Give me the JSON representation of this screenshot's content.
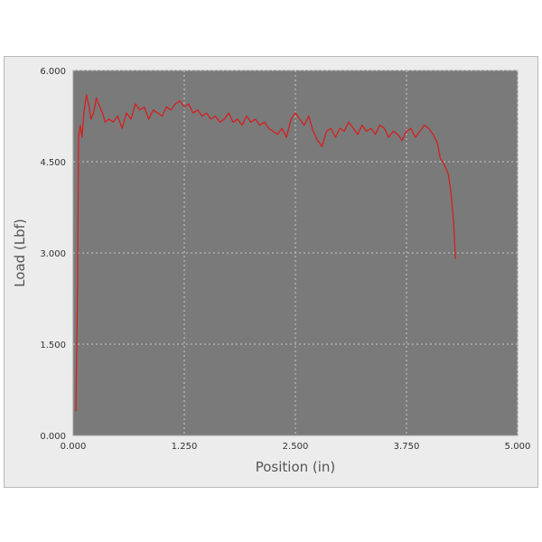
{
  "chart_data": {
    "type": "line",
    "title": "",
    "xlabel": "Position (in)",
    "ylabel": "Load (Lbf)",
    "xlim": [
      0,
      5
    ],
    "ylim": [
      0,
      6
    ],
    "x_ticks": [
      "0.000",
      "1.250",
      "2.500",
      "3.750",
      "5.000"
    ],
    "x_tick_values": [
      0,
      1.25,
      2.5,
      3.75,
      5
    ],
    "y_ticks": [
      "0.000",
      "1.500",
      "3.000",
      "4.500",
      "6.000"
    ],
    "y_tick_values": [
      0,
      1.5,
      3,
      4.5,
      6
    ],
    "grid": true,
    "plot_background": "#7a7a7a",
    "series": [
      {
        "color": "#d42020",
        "x": [
          0.03,
          0.05,
          0.06,
          0.08,
          0.1,
          0.12,
          0.15,
          0.18,
          0.2,
          0.23,
          0.26,
          0.3,
          0.33,
          0.36,
          0.4,
          0.45,
          0.5,
          0.55,
          0.6,
          0.65,
          0.7,
          0.75,
          0.8,
          0.85,
          0.9,
          0.95,
          1.0,
          1.05,
          1.1,
          1.15,
          1.2,
          1.25,
          1.3,
          1.35,
          1.4,
          1.45,
          1.5,
          1.55,
          1.6,
          1.65,
          1.7,
          1.75,
          1.8,
          1.85,
          1.9,
          1.95,
          2.0,
          2.05,
          2.1,
          2.15,
          2.2,
          2.25,
          2.3,
          2.35,
          2.4,
          2.45,
          2.5,
          2.55,
          2.6,
          2.65,
          2.7,
          2.75,
          2.8,
          2.85,
          2.9,
          2.95,
          3.0,
          3.05,
          3.1,
          3.15,
          3.2,
          3.25,
          3.3,
          3.35,
          3.4,
          3.45,
          3.5,
          3.55,
          3.6,
          3.65,
          3.7,
          3.75,
          3.8,
          3.85,
          3.9,
          3.95,
          4.0,
          4.05,
          4.1,
          4.13,
          4.16,
          4.19,
          4.22,
          4.25,
          4.28,
          4.3
        ],
        "y": [
          0.4,
          2.5,
          4.9,
          5.1,
          4.9,
          5.3,
          5.6,
          5.4,
          5.2,
          5.3,
          5.55,
          5.4,
          5.3,
          5.15,
          5.2,
          5.15,
          5.25,
          5.05,
          5.3,
          5.2,
          5.45,
          5.35,
          5.4,
          5.2,
          5.35,
          5.3,
          5.25,
          5.4,
          5.35,
          5.45,
          5.5,
          5.4,
          5.45,
          5.3,
          5.35,
          5.25,
          5.3,
          5.2,
          5.25,
          5.15,
          5.2,
          5.3,
          5.15,
          5.2,
          5.1,
          5.25,
          5.15,
          5.2,
          5.1,
          5.15,
          5.05,
          5.0,
          4.95,
          5.05,
          4.9,
          5.2,
          5.3,
          5.2,
          5.1,
          5.25,
          5.0,
          4.85,
          4.75,
          5.0,
          5.05,
          4.9,
          5.05,
          5.0,
          5.15,
          5.05,
          4.95,
          5.1,
          5.0,
          5.05,
          4.95,
          5.1,
          5.05,
          4.9,
          5.0,
          4.95,
          4.85,
          5.0,
          5.05,
          4.9,
          5.0,
          5.1,
          5.05,
          4.95,
          4.8,
          4.55,
          4.5,
          4.4,
          4.3,
          4.0,
          3.5,
          2.9
        ]
      }
    ]
  }
}
